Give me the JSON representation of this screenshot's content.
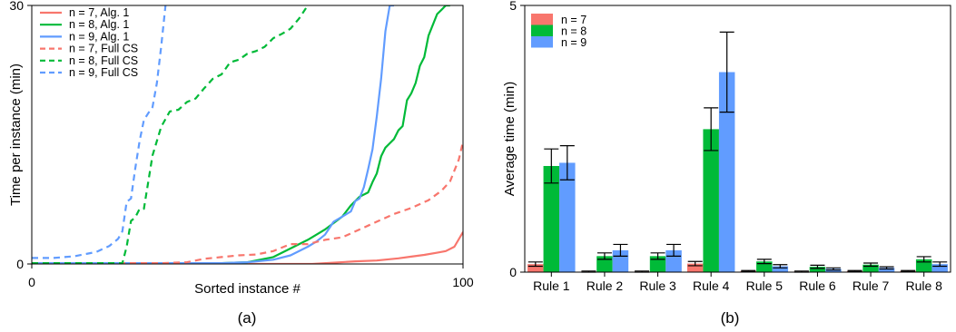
{
  "captions": [
    "(a)",
    "(b)"
  ],
  "chart_data": [
    {
      "type": "line",
      "xlabel": "Sorted instance #",
      "ylabel": "Time per instance (min)",
      "xlim": [
        0,
        100
      ],
      "ylim": [
        0,
        30
      ],
      "xticks": [
        "0",
        "100"
      ],
      "yticks": [
        "0",
        "30"
      ],
      "grid": false,
      "legend_position": "top-left",
      "series": [
        {
          "name": "n = 7, Alg. 1",
          "color": "#f8766d",
          "dash": "solid",
          "x": [
            0,
            65,
            70,
            75,
            80,
            85,
            88,
            91,
            94,
            96,
            98,
            100
          ],
          "y": [
            0,
            0,
            0.15,
            0.3,
            0.4,
            0.65,
            0.85,
            1.05,
            1.3,
            1.5,
            2.0,
            3.7
          ]
        },
        {
          "name": "n = 8, Alg. 1",
          "color": "#00ba38",
          "dash": "solid",
          "x": [
            0,
            44,
            50,
            56,
            60,
            64,
            68,
            72,
            74,
            76,
            78,
            79,
            80,
            81,
            82,
            83,
            84,
            85,
            86,
            87,
            88,
            89,
            90,
            91,
            92,
            94,
            95,
            96,
            97
          ],
          "y": [
            0.1,
            0.1,
            0.2,
            0.8,
            1.8,
            2.8,
            4.0,
            5.5,
            6.8,
            7.8,
            8.3,
            9.5,
            10.5,
            12.5,
            13.5,
            14.0,
            14.5,
            15.5,
            16.0,
            19.0,
            19.8,
            21.0,
            23.0,
            24.0,
            26.5,
            29.0,
            29.5,
            30,
            30
          ]
        },
        {
          "name": "n = 9, Alg. 1",
          "color": "#619cff",
          "dash": "solid",
          "x": [
            0,
            44,
            50,
            56,
            60,
            64,
            66,
            68,
            70,
            72,
            74,
            75,
            76,
            77,
            78,
            79,
            80,
            81,
            82,
            83,
            84
          ],
          "y": [
            0.1,
            0.1,
            0.2,
            0.5,
            1.0,
            2.0,
            2.6,
            3.4,
            4.9,
            5.5,
            6.1,
            7.3,
            7.6,
            8.9,
            11.0,
            13.3,
            17.1,
            21.5,
            27.0,
            30,
            30
          ]
        },
        {
          "name": "n = 7, Full CS",
          "color": "#f8766d",
          "dash": "dashed",
          "x": [
            0,
            30,
            36,
            40,
            44,
            48,
            52,
            56,
            60,
            64,
            68,
            72,
            76,
            80,
            84,
            88,
            92,
            95,
            97,
            99,
            100
          ],
          "y": [
            0.1,
            0.1,
            0.2,
            0.6,
            0.8,
            1.0,
            1.1,
            1.5,
            2.3,
            2.3,
            2.8,
            3.1,
            4.0,
            4.9,
            5.8,
            6.5,
            7.4,
            8.5,
            9.6,
            12.1,
            14.2
          ]
        },
        {
          "name": "n = 8, Full CS",
          "color": "#00ba38",
          "dash": "dashed",
          "x": [
            0,
            21,
            22,
            23,
            24,
            25,
            26,
            28,
            30,
            32,
            34,
            36,
            38,
            40,
            42,
            44,
            46,
            48,
            50,
            52,
            54,
            56,
            58,
            60,
            62,
            64
          ],
          "y": [
            0.1,
            0.1,
            2.0,
            5.0,
            5.4,
            6.4,
            6.4,
            12.6,
            15.9,
            17.7,
            17.9,
            18.8,
            19.2,
            20.4,
            21.5,
            22.0,
            23.4,
            23.7,
            24.4,
            24.7,
            25.2,
            26.2,
            26.7,
            27.3,
            28.5,
            30
          ]
        },
        {
          "name": "n = 9, Full CS",
          "color": "#619cff",
          "dash": "dashed",
          "x": [
            0,
            5,
            10,
            15,
            18,
            20,
            21,
            22,
            23,
            24,
            25,
            26,
            27,
            28,
            29,
            30,
            31
          ],
          "y": [
            0.7,
            0.7,
            0.9,
            1.4,
            2.1,
            2.9,
            3.8,
            7.2,
            7.6,
            11.1,
            14.3,
            16.7,
            17.5,
            18.2,
            21.0,
            25.2,
            30
          ]
        }
      ]
    },
    {
      "type": "bar",
      "xlabel": "",
      "ylabel": "Average time (min)",
      "ylim": [
        0,
        5
      ],
      "yticks": [
        "0",
        "5"
      ],
      "grid": false,
      "legend_position": "top-left",
      "categories": [
        "Rule 1",
        "Rule 2",
        "Rule 3",
        "Rule 4",
        "Rule 5",
        "Rule 6",
        "Rule 7",
        "Rule 8"
      ],
      "series": [
        {
          "name": "n = 7",
          "color": "#f8766d",
          "values": [
            0.15,
            0.01,
            0.01,
            0.16,
            0.02,
            0.01,
            0.02,
            0.02
          ],
          "errors": [
            0.04,
            0.01,
            0.01,
            0.04,
            0.01,
            0.01,
            0.01,
            0.01
          ]
        },
        {
          "name": "n = 8",
          "color": "#00ba38",
          "values": [
            1.99,
            0.3,
            0.3,
            2.68,
            0.2,
            0.1,
            0.14,
            0.24
          ],
          "errors": [
            0.32,
            0.06,
            0.06,
            0.4,
            0.04,
            0.03,
            0.03,
            0.05
          ]
        },
        {
          "name": "n = 9",
          "color": "#619cff",
          "values": [
            2.05,
            0.41,
            0.41,
            3.75,
            0.11,
            0.06,
            0.08,
            0.15
          ],
          "errors": [
            0.32,
            0.11,
            0.11,
            0.75,
            0.03,
            0.02,
            0.02,
            0.04
          ]
        }
      ]
    }
  ]
}
